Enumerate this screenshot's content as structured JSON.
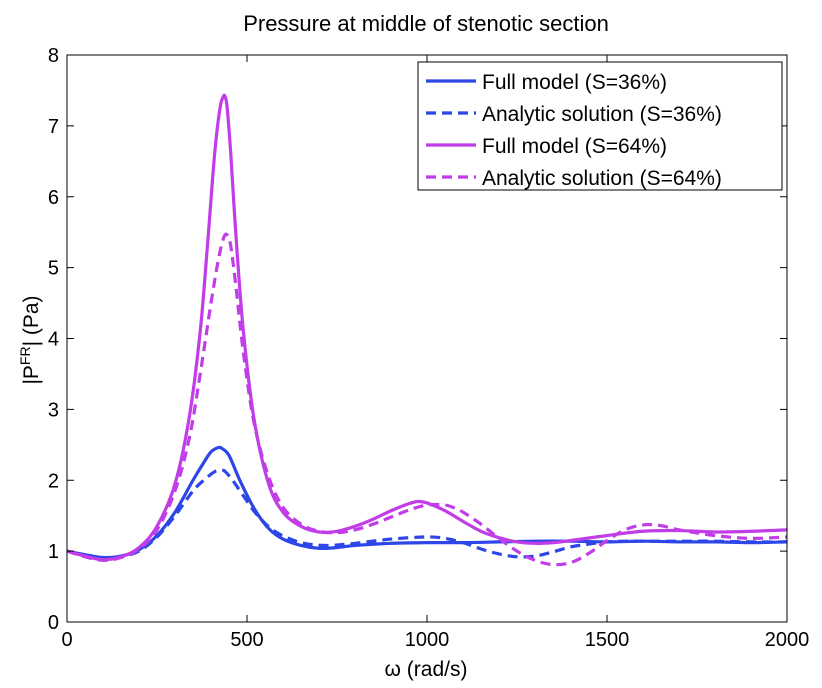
{
  "chart_data": {
    "type": "line",
    "title": "Pressure at middle of stenotic section",
    "xlabel": "ω (rad/s)",
    "ylabel_main": "|P",
    "ylabel_sup": "FR",
    "ylabel_tail": "| (Pa)",
    "xlim": [
      0,
      2000
    ],
    "ylim": [
      0,
      8
    ],
    "xticks": [
      0,
      500,
      1000,
      1500,
      2000
    ],
    "yticks": [
      0,
      1,
      2,
      3,
      4,
      5,
      6,
      7,
      8
    ],
    "grid": false,
    "legend_position": "top-right",
    "series": [
      {
        "name": "Full model (S=36%)",
        "color": "#2c46e8",
        "dash": "solid",
        "x": [
          0,
          50,
          100,
          150,
          200,
          250,
          300,
          350,
          380,
          400,
          420,
          430,
          450,
          480,
          520,
          560,
          600,
          650,
          700,
          750,
          800,
          900,
          1000,
          1100,
          1200,
          1300,
          1400,
          1500,
          1600,
          1700,
          1800,
          1900,
          2000
        ],
        "y": [
          1.0,
          0.95,
          0.91,
          0.93,
          1.02,
          1.22,
          1.55,
          2.0,
          2.25,
          2.4,
          2.46,
          2.45,
          2.35,
          2.0,
          1.6,
          1.32,
          1.17,
          1.08,
          1.04,
          1.05,
          1.08,
          1.11,
          1.12,
          1.12,
          1.13,
          1.14,
          1.14,
          1.13,
          1.14,
          1.13,
          1.13,
          1.12,
          1.13
        ]
      },
      {
        "name": "Analytic solution (S=36%)",
        "color": "#2c46e8",
        "dash": "dashed",
        "x": [
          0,
          50,
          100,
          150,
          200,
          250,
          300,
          350,
          380,
          410,
          430,
          440,
          460,
          490,
          530,
          580,
          650,
          720,
          800,
          900,
          1000,
          1050,
          1100,
          1150,
          1200,
          1250,
          1300,
          1350,
          1400,
          1450,
          1500,
          1550,
          1600,
          1700,
          1800,
          1900,
          2000
        ],
        "y": [
          1.0,
          0.94,
          0.9,
          0.92,
          1.0,
          1.2,
          1.5,
          1.85,
          2.0,
          2.12,
          2.14,
          2.12,
          2.0,
          1.78,
          1.5,
          1.27,
          1.12,
          1.08,
          1.11,
          1.17,
          1.2,
          1.18,
          1.12,
          1.03,
          0.96,
          0.92,
          0.93,
          0.99,
          1.06,
          1.1,
          1.13,
          1.14,
          1.14,
          1.14,
          1.14,
          1.13,
          1.13
        ]
      },
      {
        "name": "Full model (S=64%)",
        "color": "#c13de8",
        "dash": "solid",
        "x": [
          0,
          50,
          100,
          150,
          200,
          250,
          300,
          340,
          370,
          390,
          410,
          425,
          435,
          440,
          445,
          455,
          470,
          490,
          520,
          560,
          600,
          650,
          700,
          750,
          800,
          850,
          900,
          950,
          975,
          1000,
          1050,
          1100,
          1150,
          1200,
          1250,
          1300,
          1350,
          1400,
          1500,
          1600,
          1700,
          1800,
          1900,
          2000
        ],
        "y": [
          1.0,
          0.93,
          0.88,
          0.92,
          1.05,
          1.35,
          1.95,
          2.9,
          4.1,
          5.3,
          6.6,
          7.25,
          7.42,
          7.4,
          7.25,
          6.6,
          5.4,
          4.1,
          2.85,
          1.95,
          1.55,
          1.35,
          1.27,
          1.28,
          1.35,
          1.45,
          1.57,
          1.67,
          1.7,
          1.68,
          1.57,
          1.42,
          1.28,
          1.19,
          1.13,
          1.11,
          1.12,
          1.15,
          1.22,
          1.28,
          1.29,
          1.27,
          1.28,
          1.3
        ]
      },
      {
        "name": "Analytic solution (S=64%)",
        "color": "#c13de8",
        "dash": "dashed",
        "x": [
          0,
          50,
          100,
          150,
          200,
          250,
          300,
          340,
          370,
          400,
          420,
          435,
          445,
          455,
          470,
          490,
          520,
          560,
          600,
          650,
          700,
          750,
          800,
          850,
          900,
          950,
          1000,
          1050,
          1080,
          1100,
          1150,
          1200,
          1250,
          1300,
          1350,
          1400,
          1450,
          1500,
          1550,
          1600,
          1650,
          1700,
          1800,
          1900,
          2000
        ],
        "y": [
          1.0,
          0.92,
          0.87,
          0.91,
          1.03,
          1.3,
          1.85,
          2.6,
          3.5,
          4.5,
          5.1,
          5.42,
          5.46,
          5.3,
          4.7,
          3.8,
          2.8,
          2.05,
          1.62,
          1.38,
          1.28,
          1.26,
          1.3,
          1.38,
          1.48,
          1.58,
          1.65,
          1.65,
          1.6,
          1.55,
          1.38,
          1.18,
          1.0,
          0.87,
          0.81,
          0.84,
          0.97,
          1.15,
          1.3,
          1.37,
          1.36,
          1.3,
          1.22,
          1.18,
          1.2
        ]
      }
    ]
  }
}
